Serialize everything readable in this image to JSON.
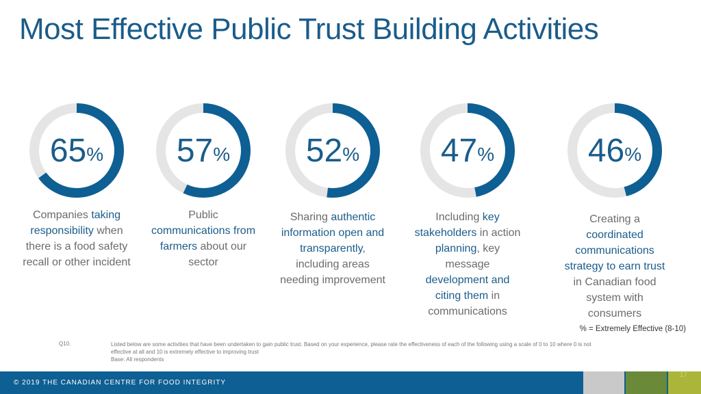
{
  "title": "Most Effective Public Trust Building Activities",
  "chart_data": {
    "type": "donut",
    "values": [
      65,
      57,
      52,
      47,
      46
    ],
    "unit": "%",
    "colors": {
      "fill": "#0e5f93",
      "track": "#e5e5e5",
      "text": "#1a5c8a"
    },
    "items": [
      {
        "value": "65",
        "label": [
          {
            "t": "Companies ",
            "h": false
          },
          {
            "t": "taking responsibility",
            "h": true
          },
          {
            "t": " when there is a food safety recall or other incident",
            "h": false
          }
        ]
      },
      {
        "value": "57",
        "label": [
          {
            "t": "Public ",
            "h": false
          },
          {
            "t": "communications from farmers",
            "h": true
          },
          {
            "t": " about our sector",
            "h": false
          }
        ]
      },
      {
        "value": "52",
        "label": [
          {
            "t": "Sharing ",
            "h": false
          },
          {
            "t": "authentic information open and transparently",
            "h": true
          },
          {
            "t": ", including areas needing improvement",
            "h": false
          }
        ]
      },
      {
        "value": "47",
        "label": [
          {
            "t": "Including ",
            "h": false
          },
          {
            "t": "key stakeholders",
            "h": true
          },
          {
            "t": " in action ",
            "h": false
          },
          {
            "t": "planning",
            "h": true
          },
          {
            "t": ", key message ",
            "h": false
          },
          {
            "t": "development and citing them",
            "h": true
          },
          {
            "t": " in communications",
            "h": false
          }
        ]
      },
      {
        "value": "46",
        "label": [
          {
            "t": "Creating a ",
            "h": false
          },
          {
            "t": "coordinated communications strategy to earn trust",
            "h": true
          },
          {
            "t": " in Canadian food system with consumers",
            "h": false
          }
        ]
      }
    ]
  },
  "legend_note": "% = Extremely Effective (8-10)",
  "question": {
    "number": "Q10.",
    "text": "Listed below are some activities that have been undertaken to gain public trust.  Based on your experience, please rate the effectiveness of each of the following using a scale of  0 to 10 where 0 is not effective at all and 10 is extremely effective to improving trust",
    "base": "Base: All respondents"
  },
  "footer": {
    "text": "© 2019 THE CANADIAN CENTRE FOR FOOD INTEGRITY",
    "page": "17",
    "colors": [
      "#c9c9c9",
      "#6a8a3a",
      "#aab53a"
    ]
  }
}
